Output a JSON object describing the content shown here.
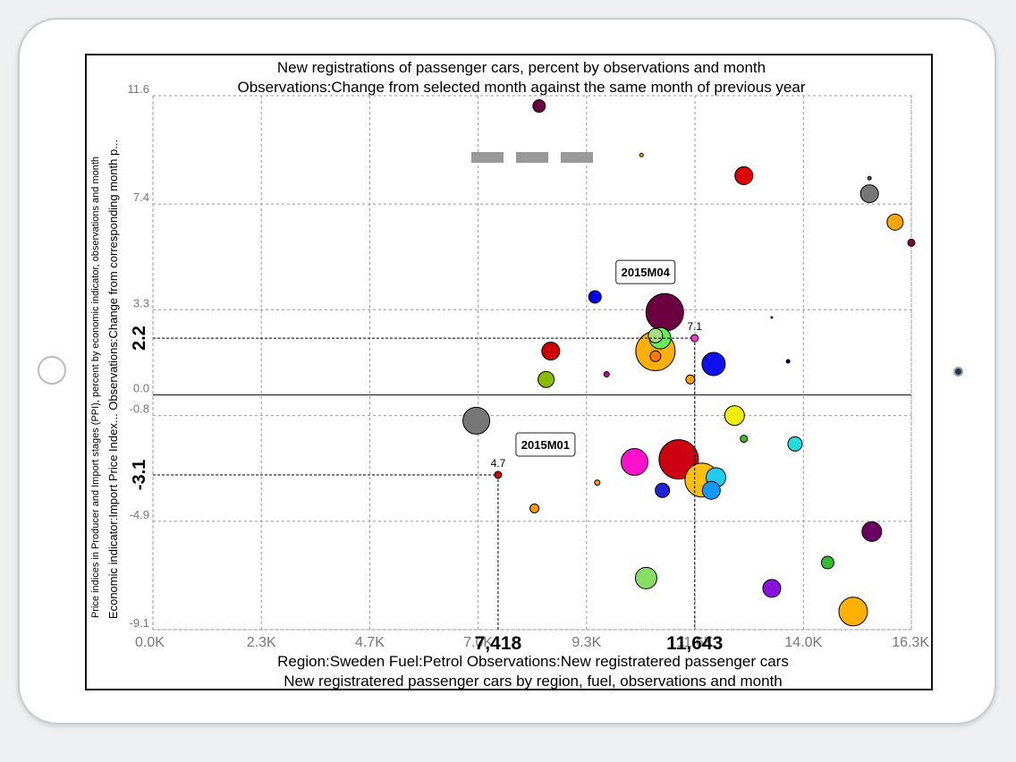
{
  "device": {
    "home_button_icon": "home-button-icon",
    "camera_icon": "camera-icon"
  },
  "chart_data": {
    "type": "scatter",
    "title": "New registrations of passenger cars, percent by observations and month",
    "subtitle": "Observations:Change from selected month against the same month of previous year",
    "xlabel": "Region:Sweden Fuel:Petrol Observations:New registratered passenger cars",
    "xlabel2": "New registratered passenger cars by region, fuel, observations and month",
    "ylabel": "Price indices in Producer and Import stages (PPI), percent by economic indicator, observations and month",
    "ylabel2": "Economic indicator:Import Price Index... Observations:Change from corresponding month p...",
    "xlim": [
      0,
      16300
    ],
    "ylim": [
      -9.1,
      11.6
    ],
    "x_ticks": [
      "0.0K",
      "2.3K",
      "4.7K",
      "7.0K",
      "9.3K",
      "11.6K",
      "14.0K",
      "16.3K"
    ],
    "x_tick_values": [
      0,
      2330,
      4660,
      6990,
      9320,
      11650,
      13980,
      16300
    ],
    "y_ticks": [
      "11.6",
      "7.4",
      "3.3",
      "0.0",
      "-0.8",
      "-4.9",
      "-9.1"
    ],
    "y_tick_values": [
      11.6,
      7.4,
      3.3,
      0.0,
      -0.8,
      -4.9,
      -9.1
    ],
    "grid": true,
    "legend_color": "#999999",
    "highlights": [
      {
        "x": 7418,
        "y": -3.1,
        "x_label": "7,418",
        "y_label": "-3.1",
        "value_label": "4.7",
        "tag": "2015M01",
        "color": "#d40000"
      },
      {
        "x": 11643,
        "y": 2.2,
        "x_label": "11,643",
        "y_label": "2.2",
        "value_label": "7.1",
        "tag": "2015M04",
        "color": "#ff33cc"
      }
    ],
    "points": [
      {
        "x": 8300,
        "y": 11.2,
        "r": 7,
        "color": "#6a0040"
      },
      {
        "x": 10500,
        "y": 9.3,
        "r": 2,
        "color": "#ffb000"
      },
      {
        "x": 12700,
        "y": 8.5,
        "r": 10,
        "color": "#dd0000"
      },
      {
        "x": 15400,
        "y": 8.4,
        "r": 2,
        "color": "#555555"
      },
      {
        "x": 15400,
        "y": 7.8,
        "r": 10,
        "color": "#777777"
      },
      {
        "x": 15950,
        "y": 6.7,
        "r": 9,
        "color": "#ffa500"
      },
      {
        "x": 16300,
        "y": 5.9,
        "r": 4,
        "color": "#7a0a3a"
      },
      {
        "x": 10950,
        "y": 4.7,
        "r": 4,
        "color": "#666666"
      },
      {
        "x": 9500,
        "y": 3.8,
        "r": 7,
        "color": "#0000ee"
      },
      {
        "x": 11000,
        "y": 3.2,
        "r": 21,
        "color": "#6a0040"
      },
      {
        "x": 13300,
        "y": 3.0,
        "r": 1,
        "color": "#000000"
      },
      {
        "x": 10800,
        "y": 1.7,
        "r": 22,
        "color": "#ffb000"
      },
      {
        "x": 10900,
        "y": 2.2,
        "r": 12,
        "color": "#66ee55"
      },
      {
        "x": 10800,
        "y": 2.3,
        "r": 8,
        "color": "#a8dd88"
      },
      {
        "x": 10800,
        "y": 1.5,
        "r": 6,
        "color": "#ff7700"
      },
      {
        "x": 8550,
        "y": 1.7,
        "r": 10,
        "color": "#cc0000"
      },
      {
        "x": 12050,
        "y": 1.2,
        "r": 13,
        "color": "#1010ee"
      },
      {
        "x": 13650,
        "y": 1.3,
        "r": 2,
        "color": "#000066"
      },
      {
        "x": 11550,
        "y": 0.6,
        "r": 5,
        "color": "#ffa500"
      },
      {
        "x": 9750,
        "y": 0.8,
        "r": 3,
        "color": "#cc00aa"
      },
      {
        "x": 8450,
        "y": 0.6,
        "r": 9,
        "color": "#88bb00"
      },
      {
        "x": 6950,
        "y": -1.0,
        "r": 15,
        "color": "#777777"
      },
      {
        "x": 12500,
        "y": -0.8,
        "r": 11,
        "color": "#eeee00"
      },
      {
        "x": 12700,
        "y": -1.7,
        "r": 4,
        "color": "#44bb22"
      },
      {
        "x": 13800,
        "y": -1.9,
        "r": 8,
        "color": "#22dddd"
      },
      {
        "x": 10350,
        "y": -2.6,
        "r": 15,
        "color": "#ff11cc"
      },
      {
        "x": 11300,
        "y": -2.5,
        "r": 22,
        "color": "#cc0011"
      },
      {
        "x": 11800,
        "y": -3.3,
        "r": 19,
        "color": "#ffc000"
      },
      {
        "x": 12100,
        "y": -3.2,
        "r": 11,
        "color": "#22ccee"
      },
      {
        "x": 12000,
        "y": -3.7,
        "r": 10,
        "color": "#1199ff"
      },
      {
        "x": 10950,
        "y": -3.7,
        "r": 8,
        "color": "#2222dd"
      },
      {
        "x": 9550,
        "y": -3.4,
        "r": 3,
        "color": "#ff9900"
      },
      {
        "x": 8200,
        "y": -4.4,
        "r": 5,
        "color": "#ff9900"
      },
      {
        "x": 15450,
        "y": -5.3,
        "r": 11,
        "color": "#6a0060"
      },
      {
        "x": 14500,
        "y": -6.5,
        "r": 7,
        "color": "#33bb33"
      },
      {
        "x": 10600,
        "y": -7.1,
        "r": 12,
        "color": "#88dd66"
      },
      {
        "x": 13300,
        "y": -7.5,
        "r": 10,
        "color": "#8a10dd"
      },
      {
        "x": 15050,
        "y": -8.4,
        "r": 16,
        "color": "#ffb000"
      }
    ]
  }
}
